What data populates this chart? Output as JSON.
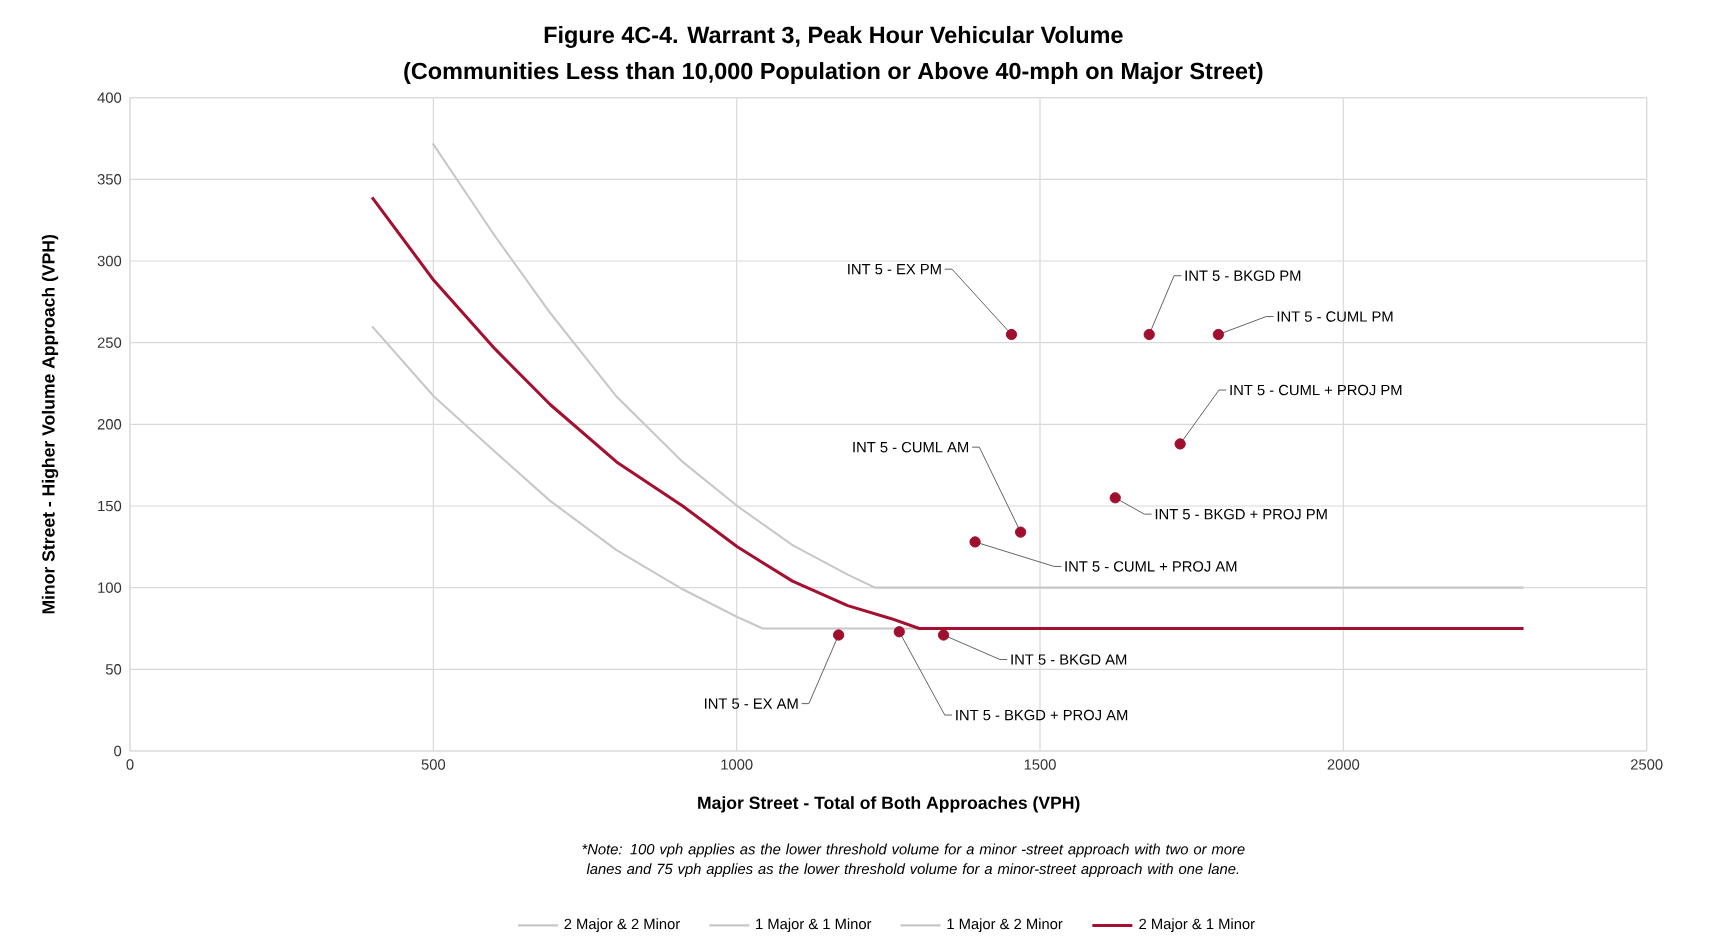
{
  "chart_data": {
    "type": "line",
    "title": "Figure 4C-4. Warrant 3, Peak Hour Vehicular Volume",
    "subtitle": "(Communities Less than 10,000 Population or Above 40-mph on Major Street)",
    "xlabel": "Major Street - Total of Both Approaches  (VPH)",
    "ylabel": "Minor Street - Higher Volume Approach (VPH)",
    "xlim": [
      0,
      2500
    ],
    "xticks": [
      0,
      500,
      1000,
      1500,
      2000,
      2500
    ],
    "ylim": [
      0,
      400
    ],
    "yticks": [
      0,
      50,
      100,
      150,
      200,
      250,
      300,
      350,
      400
    ],
    "grid": true,
    "legend": "bottom",
    "series": [
      {
        "name": "2 Major & 2 Minor",
        "color": "#c8c8c8",
        "x": [
          499,
          602,
          693,
          802,
          911,
          1001,
          1092,
          1183,
          1228,
          2297
        ],
        "values": [
          372,
          315,
          268,
          217,
          177,
          150,
          126,
          108,
          100,
          100
        ]
      },
      {
        "name": "1 Major & 1 Minor",
        "color": "#c8c8c8",
        "x": [
          399,
          501,
          602,
          693,
          802,
          911,
          1001,
          1043,
          2297
        ],
        "values": [
          260,
          217,
          183,
          153,
          123,
          99,
          82,
          75,
          75
        ]
      },
      {
        "name": "1 Major & 2 Minor",
        "color": "#c8c8c8"
      },
      {
        "name": "2 Major & 1 Minor",
        "color": "#a50f30",
        "x": [
          399,
          501,
          602,
          693,
          802,
          911,
          1001,
          1092,
          1183,
          1255,
          1301,
          2297
        ],
        "values": [
          339,
          288,
          246,
          212,
          177,
          150,
          125,
          104,
          89,
          81,
          75,
          75
        ]
      },
      {
        "type": "scatter",
        "color": "#a0102e",
        "x": [
          1453,
          1680,
          1794,
          1731,
          1624,
          1468,
          1393,
          1168,
          1268,
          1341
        ],
        "values": [
          255,
          255,
          255,
          188,
          155,
          134,
          128,
          71,
          73,
          71
        ]
      }
    ],
    "annotations": [
      "*Note: 100 vph applies as the lower threshold volume for a minor -street approach with two or more lanes and 75 vph applies as the lower threshold volume for a minor-street approach with one lane.",
      {
        "text": "INT 5 - EX PM",
        "x": 1453,
        "y": 255
      },
      {
        "text": "INT 5 - BKGD PM",
        "x": 1680,
        "y": 255
      },
      {
        "text": "INT 5 - CUML PM",
        "x": 1794,
        "y": 255
      },
      {
        "text": "INT 5 - CUML + PROJ PM",
        "x": 1731,
        "y": 188
      },
      {
        "text": "INT 5 - BKGD + PROJ PM",
        "x": 1624,
        "y": 155
      },
      {
        "text": "INT 5 - CUML AM",
        "x": 1468,
        "y": 134
      },
      {
        "text": "INT 5 - CUML + PROJ AM",
        "x": 1393,
        "y": 128
      },
      {
        "text": "INT 5 - EX AM",
        "x": 1168,
        "y": 71
      },
      {
        "text": "INT 5 - BKGD + PROJ AM",
        "x": 1268,
        "y": 73
      },
      {
        "text": "INT 5 - BKGD AM",
        "x": 1341,
        "y": 71
      }
    ]
  }
}
